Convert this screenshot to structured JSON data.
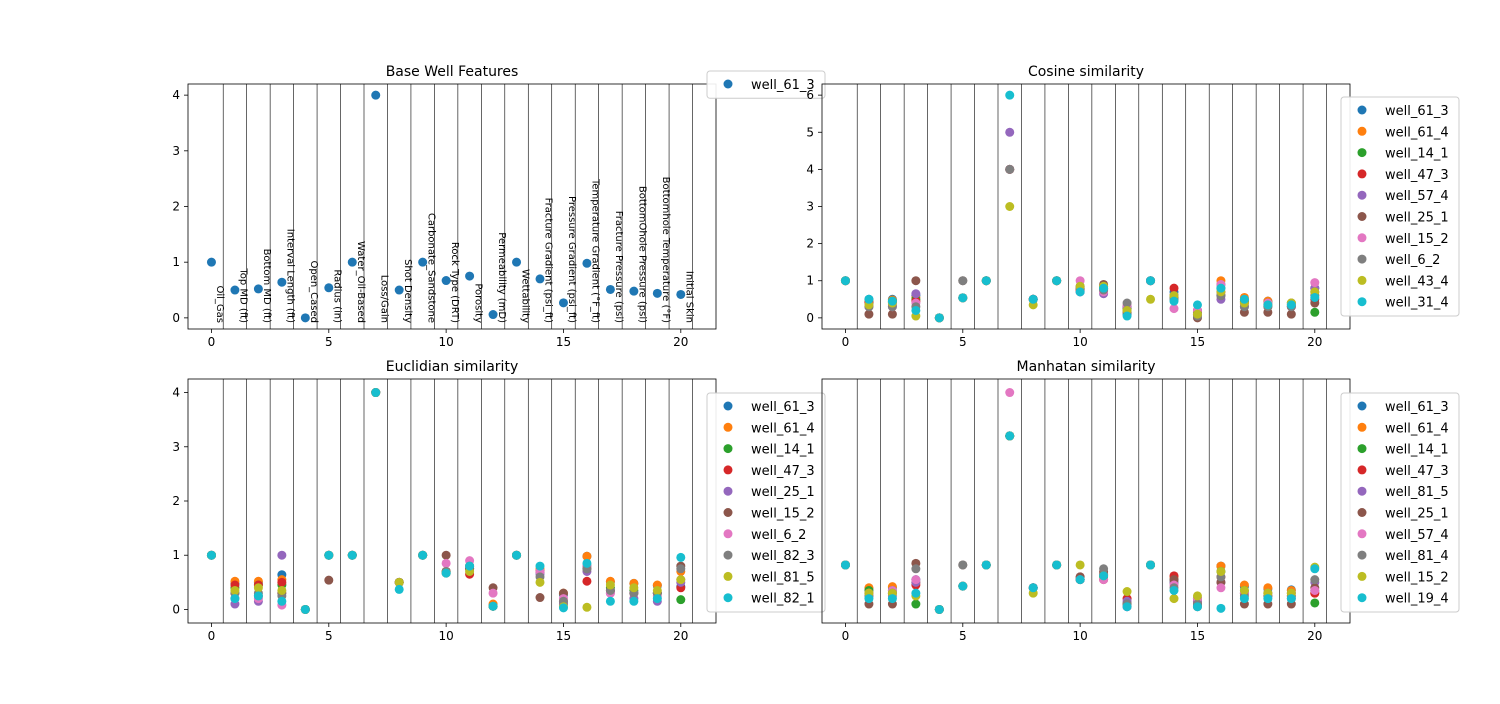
{
  "palette": [
    "#1f77b4",
    "#ff7f0e",
    "#2ca02c",
    "#d62728",
    "#9467bd",
    "#8c564b",
    "#e377c2",
    "#7f7f7f",
    "#bcbd22",
    "#17becf"
  ],
  "chart_data": [
    {
      "type": "scatter",
      "title": "Base Well Features",
      "xlim": [
        -1,
        21.5
      ],
      "ylim": [
        -0.2,
        4.2
      ],
      "xticks": [
        0,
        5,
        10,
        15,
        20
      ],
      "yticks": [
        0,
        1,
        2,
        3,
        4
      ],
      "vlines": [
        0.5,
        1.5,
        2.5,
        3.5,
        4.5,
        5.5,
        6.5,
        7.5,
        8.5,
        9.5,
        10.5,
        11.5,
        12.5,
        13.5,
        14.5,
        15.5,
        16.5,
        17.5,
        18.5,
        19.5,
        20.5
      ],
      "feature_labels": [
        "Oil_Gas",
        "Top MD (ft)",
        "Bottom MD (ft)",
        "Interval Length (ft)",
        "Open_Cased",
        "Radius (in)",
        "Water_Oil-Based",
        "Loss/Gain",
        "Shot Density",
        "Carbonate_Sandstone",
        "Rock Type (DRT)",
        "Porosity",
        "Permeability (mD)",
        "Wettability",
        "Fracture Gradient (psi_ft)",
        "Pressure Gradient (psi_ft)",
        "Temperature Gradient (°F_ft)",
        "Fracture Pressure (psi)",
        "BottomOhole Pressure (psi)",
        "Bottomhole Temperature (°F)",
        "Initial Skin"
      ],
      "series": [
        {
          "name": "well_61_3",
          "values": [
            1.0,
            0.5,
            0.52,
            0.64,
            0.0,
            0.54,
            1.0,
            4.0,
            0.5,
            1.0,
            0.67,
            0.75,
            0.06,
            1.0,
            0.7,
            0.27,
            0.98,
            0.51,
            0.48,
            0.44,
            0.42
          ]
        }
      ]
    },
    {
      "type": "scatter",
      "title": "Cosine similarity",
      "xlim": [
        -1,
        21.5
      ],
      "ylim": [
        -0.3,
        6.3
      ],
      "xticks": [
        0,
        5,
        10,
        15,
        20
      ],
      "yticks": [
        0,
        1,
        2,
        3,
        4,
        5,
        6
      ],
      "vlines": [
        0.5,
        1.5,
        2.5,
        3.5,
        4.5,
        5.5,
        6.5,
        7.5,
        8.5,
        9.5,
        10.5,
        11.5,
        12.5,
        13.5,
        14.5,
        15.5,
        16.5,
        17.5,
        18.5,
        19.5,
        20.5
      ],
      "series": [
        {
          "name": "well_61_3",
          "values": [
            1,
            0.5,
            0.5,
            0.6,
            0,
            0.54,
            1,
            4,
            0.5,
            1,
            0.7,
            0.8,
            0.1,
            1,
            0.7,
            0.2,
            0.9,
            0.5,
            0.45,
            0.4,
            0.8
          ]
        },
        {
          "name": "well_61_4",
          "values": [
            1,
            0.45,
            0.48,
            0.55,
            0,
            0.54,
            1,
            4,
            0.5,
            1,
            0.75,
            0.85,
            0.2,
            1,
            0.6,
            0.1,
            1.0,
            0.55,
            0.45,
            0.4,
            0.7
          ]
        },
        {
          "name": "well_14_1",
          "values": [
            1,
            0.4,
            0.45,
            0.5,
            0,
            0.54,
            1,
            4,
            0.5,
            1,
            0.8,
            0.8,
            0.25,
            1,
            0.55,
            0.15,
            0.8,
            0.45,
            0.4,
            0.35,
            0.15
          ]
        },
        {
          "name": "well_47_3",
          "values": [
            1,
            0.42,
            0.42,
            0.45,
            0,
            0.54,
            1,
            4,
            0.5,
            1,
            0.75,
            0.75,
            0.3,
            1,
            0.8,
            0.2,
            0.7,
            0.4,
            0.35,
            0.3,
            0.5
          ]
        },
        {
          "name": "well_57_4",
          "values": [
            1,
            0.3,
            0.35,
            0.65,
            0,
            0.54,
            1,
            5,
            0.5,
            1,
            0.7,
            0.65,
            0.3,
            1,
            0.6,
            0.1,
            0.5,
            0.3,
            0.3,
            0.3,
            0.8
          ]
        },
        {
          "name": "well_25_1",
          "values": [
            1,
            0.1,
            0.1,
            1.0,
            0,
            1.0,
            1,
            4,
            0.5,
            1,
            0.85,
            0.9,
            0.15,
            1,
            0.5,
            0.0,
            0.6,
            0.15,
            0.15,
            0.1,
            0.4
          ]
        },
        {
          "name": "well_15_2",
          "values": [
            1,
            0.35,
            0.3,
            0.4,
            0,
            0.54,
            1,
            4,
            0.5,
            1,
            1.0,
            0.7,
            0.35,
            1,
            0.25,
            0.2,
            0.9,
            0.35,
            0.4,
            0.35,
            0.95
          ]
        },
        {
          "name": "well_6_2",
          "values": [
            1,
            0.3,
            0.3,
            0.3,
            0,
            1.0,
            1,
            4,
            0.5,
            1,
            0.8,
            0.75,
            0.4,
            1,
            0.5,
            0.05,
            0.6,
            0.3,
            0.3,
            0.3,
            0.6
          ]
        },
        {
          "name": "well_43_4",
          "values": [
            1,
            0.35,
            0.4,
            0.05,
            0,
            0.54,
            1,
            3,
            0.35,
            1,
            0.85,
            0.85,
            0.2,
            0.5,
            0.6,
            0.1,
            0.7,
            0.4,
            0.35,
            0.4,
            0.7
          ]
        },
        {
          "name": "well_31_4",
          "values": [
            1,
            0.5,
            0.45,
            0.2,
            0,
            0.54,
            1,
            6,
            0.5,
            1,
            0.7,
            0.8,
            0.05,
            1,
            0.45,
            0.35,
            0.8,
            0.5,
            0.35,
            0.35,
            0.55
          ]
        }
      ]
    },
    {
      "type": "scatter",
      "title": "Euclidian similarity",
      "xlim": [
        -1,
        21.5
      ],
      "ylim": [
        -0.25,
        4.25
      ],
      "xticks": [
        0,
        5,
        10,
        15,
        20
      ],
      "yticks": [
        0,
        1,
        2,
        3,
        4
      ],
      "vlines": [
        0.5,
        1.5,
        2.5,
        3.5,
        4.5,
        5.5,
        6.5,
        7.5,
        8.5,
        9.5,
        10.5,
        11.5,
        12.5,
        13.5,
        14.5,
        15.5,
        16.5,
        17.5,
        18.5,
        19.5,
        20.5
      ],
      "series": [
        {
          "name": "well_61_3",
          "values": [
            1,
            0.48,
            0.5,
            0.64,
            0,
            1.0,
            1,
            4,
            0.5,
            1,
            0.67,
            0.75,
            0.06,
            1,
            0.7,
            0.27,
            0.98,
            0.51,
            0.48,
            0.44,
            0.42
          ]
        },
        {
          "name": "well_61_4",
          "values": [
            1,
            0.52,
            0.52,
            0.55,
            0,
            1.0,
            1,
            4,
            0.5,
            1,
            0.7,
            0.8,
            0.1,
            1,
            0.75,
            0.3,
            0.98,
            0.52,
            0.48,
            0.45,
            0.7
          ]
        },
        {
          "name": "well_14_1",
          "values": [
            1,
            0.4,
            0.45,
            0.45,
            0,
            1.0,
            1,
            4,
            0.5,
            1,
            0.7,
            0.75,
            0.06,
            1,
            0.7,
            0.1,
            0.8,
            0.4,
            0.35,
            0.3,
            0.18
          ]
        },
        {
          "name": "well_47_3",
          "values": [
            1,
            0.45,
            0.45,
            0.5,
            0,
            1.0,
            1,
            4,
            0.5,
            1,
            0.7,
            0.65,
            0.06,
            1,
            0.7,
            0.15,
            0.52,
            0.35,
            0.3,
            0.3,
            0.4
          ]
        },
        {
          "name": "well_25_1",
          "values": [
            1,
            0.1,
            0.15,
            1.0,
            0,
            1.0,
            1,
            4,
            0.5,
            1,
            0.67,
            0.75,
            0.06,
            1,
            0.65,
            0.1,
            0.7,
            0.3,
            0.2,
            0.15,
            0.5
          ]
        },
        {
          "name": "well_15_2",
          "values": [
            1,
            0.3,
            0.25,
            0.3,
            0,
            0.54,
            1,
            4,
            0.5,
            1,
            1.0,
            0.75,
            0.4,
            1,
            0.22,
            0.3,
            0.75,
            0.35,
            0.3,
            0.3,
            0.8
          ]
        },
        {
          "name": "well_6_2",
          "values": [
            1,
            0.2,
            0.2,
            0.08,
            0,
            1.0,
            1,
            4,
            0.5,
            1,
            0.85,
            0.9,
            0.3,
            1,
            0.7,
            0.2,
            0.8,
            0.3,
            0.3,
            0.25,
            0.55
          ]
        },
        {
          "name": "well_82_3",
          "values": [
            1,
            0.3,
            0.3,
            0.25,
            0,
            1.0,
            1,
            4,
            0.5,
            1,
            0.7,
            0.8,
            0.06,
            1,
            0.6,
            0.15,
            0.75,
            0.35,
            0.3,
            0.3,
            0.75
          ]
        },
        {
          "name": "well_81_5",
          "values": [
            1,
            0.35,
            0.4,
            0.35,
            0,
            1.0,
            1,
            4,
            0.5,
            1,
            0.67,
            0.7,
            0.06,
            1,
            0.5,
            0.05,
            0.04,
            0.45,
            0.4,
            0.35,
            0.55
          ]
        },
        {
          "name": "well_82_1",
          "values": [
            1,
            0.2,
            0.25,
            0.15,
            0,
            1.0,
            1,
            4,
            0.37,
            1,
            0.67,
            0.8,
            0.06,
            1,
            0.8,
            0.03,
            0.85,
            0.15,
            0.15,
            0.2,
            0.96
          ]
        }
      ]
    },
    {
      "type": "scatter",
      "title": "Manhatan similarity",
      "xlim": [
        -1,
        21.5
      ],
      "ylim": [
        -0.25,
        4.25
      ],
      "xticks": [
        0,
        5,
        10,
        15,
        20
      ],
      "yticks": [],
      "vlines": [
        0.5,
        1.5,
        2.5,
        3.5,
        4.5,
        5.5,
        6.5,
        7.5,
        8.5,
        9.5,
        10.5,
        11.5,
        12.5,
        13.5,
        14.5,
        15.5,
        16.5,
        17.5,
        18.5,
        19.5,
        20.5
      ],
      "series": [
        {
          "name": "well_61_3",
          "values": [
            0.82,
            0.38,
            0.4,
            0.55,
            0,
            0.43,
            0.82,
            3.2,
            0.4,
            0.82,
            0.55,
            0.62,
            0.05,
            0.82,
            0.55,
            0.2,
            0.8,
            0.42,
            0.38,
            0.36,
            0.34
          ]
        },
        {
          "name": "well_61_4",
          "values": [
            0.82,
            0.4,
            0.42,
            0.5,
            0,
            0.43,
            0.82,
            3.2,
            0.4,
            0.82,
            0.6,
            0.65,
            0.1,
            0.82,
            0.6,
            0.15,
            0.8,
            0.45,
            0.4,
            0.35,
            0.3
          ]
        },
        {
          "name": "well_14_1",
          "values": [
            0.82,
            0.35,
            0.35,
            0.1,
            0,
            0.43,
            0.82,
            3.2,
            0.4,
            0.82,
            0.55,
            0.6,
            0.1,
            0.82,
            0.5,
            0.1,
            0.7,
            0.35,
            0.3,
            0.3,
            0.12
          ]
        },
        {
          "name": "well_47_3",
          "values": [
            0.82,
            0.3,
            0.3,
            0.45,
            0,
            0.43,
            0.82,
            3.2,
            0.4,
            0.82,
            0.55,
            0.55,
            0.2,
            0.82,
            0.62,
            0.1,
            0.6,
            0.3,
            0.25,
            0.25,
            0.3
          ]
        },
        {
          "name": "well_81_5",
          "values": [
            0.82,
            0.25,
            0.25,
            0.5,
            0,
            0.43,
            0.82,
            3.2,
            0.4,
            0.82,
            0.6,
            0.65,
            0.15,
            0.82,
            0.5,
            0.15,
            0.5,
            0.3,
            0.25,
            0.2,
            0.5
          ]
        },
        {
          "name": "well_25_1",
          "values": [
            0.82,
            0.1,
            0.1,
            0.85,
            0,
            0.82,
            0.82,
            3.2,
            0.4,
            0.82,
            0.6,
            0.7,
            0.1,
            0.82,
            0.55,
            0.05,
            0.5,
            0.1,
            0.1,
            0.1,
            0.4
          ]
        },
        {
          "name": "well_57_4",
          "values": [
            0.82,
            0.3,
            0.35,
            0.55,
            0,
            0.43,
            0.82,
            4.0,
            0.4,
            0.82,
            0.55,
            0.55,
            0.05,
            0.82,
            0.45,
            0.2,
            0.4,
            0.3,
            0.3,
            0.3,
            0.35
          ]
        },
        {
          "name": "well_81_4",
          "values": [
            0.82,
            0.25,
            0.3,
            0.75,
            0,
            0.82,
            0.82,
            3.2,
            0.4,
            0.82,
            0.55,
            0.75,
            0.1,
            0.82,
            0.4,
            0.1,
            0.6,
            0.25,
            0.25,
            0.25,
            0.55
          ]
        },
        {
          "name": "well_15_2",
          "values": [
            0.82,
            0.3,
            0.3,
            0.25,
            0,
            0.43,
            0.82,
            3.2,
            0.3,
            0.82,
            0.82,
            0.62,
            0.33,
            0.82,
            0.2,
            0.25,
            0.7,
            0.35,
            0.3,
            0.3,
            0.78
          ]
        },
        {
          "name": "well_19_4",
          "values": [
            0.82,
            0.2,
            0.2,
            0.3,
            0,
            0.43,
            0.82,
            3.2,
            0.4,
            0.82,
            0.55,
            0.62,
            0.05,
            0.82,
            0.35,
            0.05,
            0.02,
            0.2,
            0.2,
            0.2,
            0.75
          ]
        }
      ]
    }
  ]
}
